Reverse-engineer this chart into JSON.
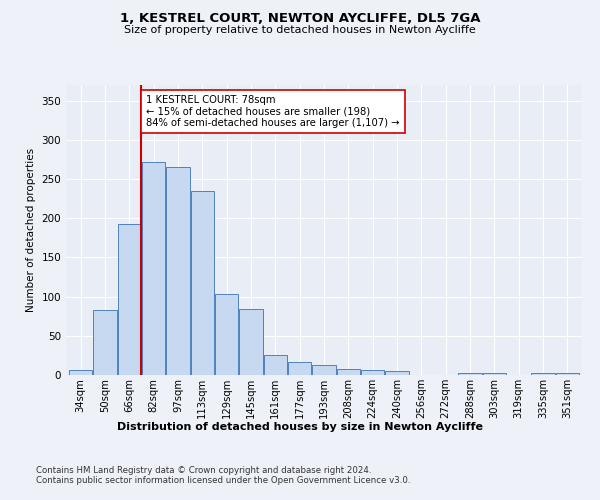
{
  "title1": "1, KESTREL COURT, NEWTON AYCLIFFE, DL5 7GA",
  "title2": "Size of property relative to detached houses in Newton Aycliffe",
  "xlabel": "Distribution of detached houses by size in Newton Aycliffe",
  "ylabel": "Number of detached properties",
  "categories": [
    "34sqm",
    "50sqm",
    "66sqm",
    "82sqm",
    "97sqm",
    "113sqm",
    "129sqm",
    "145sqm",
    "161sqm",
    "177sqm",
    "193sqm",
    "208sqm",
    "224sqm",
    "240sqm",
    "256sqm",
    "272sqm",
    "288sqm",
    "303sqm",
    "319sqm",
    "335sqm",
    "351sqm"
  ],
  "values": [
    6,
    83,
    193,
    272,
    265,
    235,
    103,
    84,
    26,
    17,
    13,
    8,
    7,
    5,
    0,
    0,
    3,
    2,
    0,
    3,
    3
  ],
  "bar_color": "#c6d9f0",
  "bar_edge_color": "#4f81bd",
  "annotation_text_line1": "1 KESTREL COURT: 78sqm",
  "annotation_text_line2": "← 15% of detached houses are smaller (198)",
  "annotation_text_line3": "84% of semi-detached houses are larger (1,107) →",
  "vline_color": "#cc0000",
  "ylim": [
    0,
    370
  ],
  "yticks": [
    0,
    50,
    100,
    150,
    200,
    250,
    300,
    350
  ],
  "footer1": "Contains HM Land Registry data © Crown copyright and database right 2024.",
  "footer2": "Contains public sector information licensed under the Open Government Licence v3.0.",
  "bg_color": "#eef2f8",
  "plot_bg_color": "#e8edf6"
}
